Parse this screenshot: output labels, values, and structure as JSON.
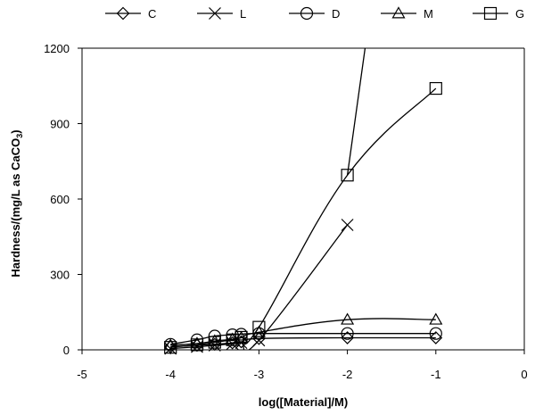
{
  "chart_data": {
    "type": "line",
    "title": "",
    "xlabel": "log([Material]/M)",
    "ylabel": {
      "prefix": "Hardness/(mg/L as CaCO",
      "sub": "3",
      "suffix": ")"
    },
    "xlim": [
      -5,
      0
    ],
    "ylim": [
      0,
      1200
    ],
    "xticks": [
      "-5",
      "-4",
      "-3",
      "-2",
      "-1",
      "0"
    ],
    "yticks": [
      "0",
      "300",
      "600",
      "900",
      "1200"
    ],
    "grid": false,
    "legend": "top",
    "series": [
      {
        "name": "C",
        "marker": "diamond",
        "x": [
          -4,
          -3.7,
          -3.5,
          -3.3,
          -3.2,
          -3,
          -2,
          -1
        ],
        "y": [
          12,
          18,
          22,
          28,
          32,
          45,
          48,
          48
        ]
      },
      {
        "name": "L",
        "marker": "x",
        "x": [
          -4,
          -3.7,
          -3.5,
          -3.3,
          -3.2,
          -3,
          -2
        ],
        "y": [
          5,
          12,
          18,
          24,
          28,
          38,
          497
        ]
      },
      {
        "name": "D",
        "marker": "circle",
        "x": [
          -4,
          -3.7,
          -3.5,
          -3.3,
          -3.2,
          -3,
          -2,
          -1
        ],
        "y": [
          22,
          40,
          55,
          60,
          62,
          65,
          65,
          65
        ]
      },
      {
        "name": "M",
        "marker": "triangle",
        "x": [
          -4,
          -3.7,
          -3.5,
          -3.3,
          -3.2,
          -3,
          -2,
          -1
        ],
        "y": [
          18,
          25,
          35,
          42,
          48,
          70,
          120,
          120
        ]
      },
      {
        "name": "G",
        "marker": "square",
        "x": [
          -4,
          -3.7,
          -3.5,
          -3.3,
          -3.2,
          -3,
          -2,
          -1
        ],
        "y": [
          10,
          20,
          30,
          40,
          50,
          90,
          695,
          1040
        ]
      }
    ],
    "extra_line": {
      "series": "G",
      "x": [
        -2,
        -1.8
      ],
      "y": [
        695,
        1200
      ]
    }
  }
}
